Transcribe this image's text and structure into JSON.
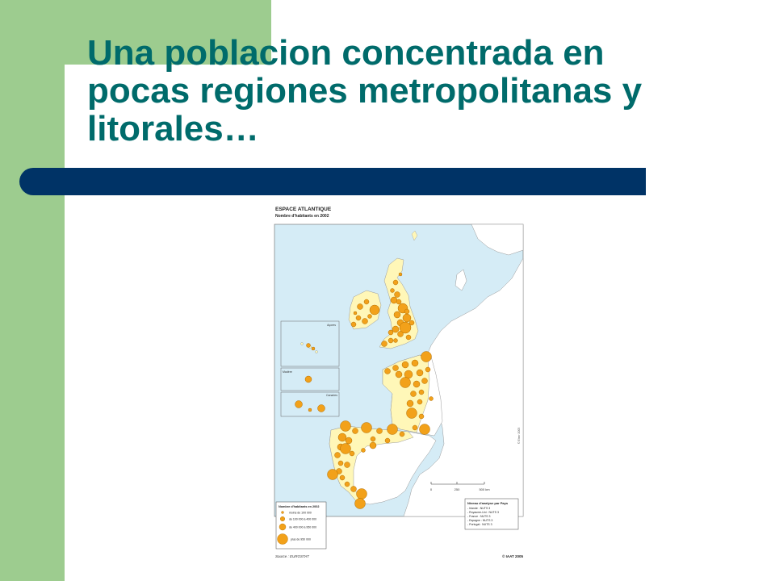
{
  "slide": {
    "title_lines": [
      "Una poblacion concentrada en",
      "pocas regiones metropolitanas y",
      "litorales…"
    ]
  },
  "map": {
    "title": "ESPACE ATLANTIQUE",
    "subtitle": "Nombre d'habitants en 2002",
    "inset_labels": {
      "azores": "Açores",
      "madeira": "Madère",
      "canarias": "Canaries"
    },
    "legend": {
      "title": "Nombre d'habitants en 2002",
      "classes": [
        {
          "label": "moins de 100 000"
        },
        {
          "label": "de 100 000 à 400 000"
        },
        {
          "label": "de 400 000 à 950 000"
        },
        {
          "label": "plus de 950 000"
        }
      ]
    },
    "scale": {
      "labels": [
        "0",
        "250",
        "500 km"
      ]
    },
    "analysis": {
      "title": "Niveau d'analyse par Pays",
      "rows": [
        "- Irlande : NUTS 3",
        "- Royaume-Uni : NUTS 3",
        "- France : NUTS 3",
        "- Espagne : NUTS 3",
        "- Portugal : NUTS 3"
      ]
    },
    "source": "Source : EUROSTAT",
    "copyright": "© IAAT 2005",
    "side_credit": "© Eiser 2005",
    "colors": {
      "sea": "#d5ecf6",
      "land_outside": "#ffffff",
      "land_atlantic": "#fff7b8",
      "bubble": "#f2a11a",
      "bubble_stroke": "#b36e00",
      "border": "#9a9a9a"
    }
  }
}
